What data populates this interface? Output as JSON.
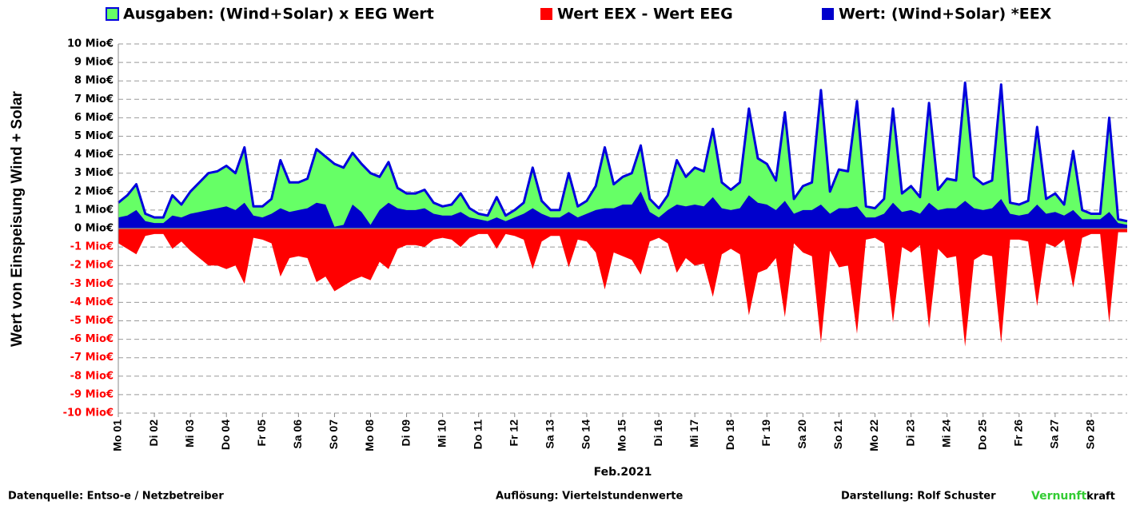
{
  "chart_data": {
    "type": "area",
    "y_label": "Wert von Einspeisung Wind + Solar",
    "x_label": "Feb.2021",
    "xlim": [
      1,
      29
    ],
    "ylim": [
      -10,
      10
    ],
    "grid": true,
    "negative_tick_color": "#ff0000",
    "yticks": [
      {
        "value": -10,
        "label": "-10 Mio€"
      },
      {
        "value": -9,
        "label": "-9 Mio€"
      },
      {
        "value": -8,
        "label": "-8 Mio€"
      },
      {
        "value": -7,
        "label": "-7 Mio€"
      },
      {
        "value": -6,
        "label": "-6 Mio€"
      },
      {
        "value": -5,
        "label": "-5 Mio€"
      },
      {
        "value": -4,
        "label": "-4 Mio€"
      },
      {
        "value": -3,
        "label": "-3 Mio€"
      },
      {
        "value": -2,
        "label": "-2 Mio€"
      },
      {
        "value": -1,
        "label": "-1 Mio€"
      },
      {
        "value": 0,
        "label": "0 Mio€"
      },
      {
        "value": 1,
        "label": "1 Mio€"
      },
      {
        "value": 2,
        "label": "2 Mio€"
      },
      {
        "value": 3,
        "label": "3 Mio€"
      },
      {
        "value": 4,
        "label": "4 Mio€"
      },
      {
        "value": 5,
        "label": "5 Mio€"
      },
      {
        "value": 6,
        "label": "6 Mio€"
      },
      {
        "value": 7,
        "label": "7 Mio€"
      },
      {
        "value": 8,
        "label": "8 Mio€"
      },
      {
        "value": 9,
        "label": "9 Mio€"
      },
      {
        "value": 10,
        "label": "10 Mio€"
      }
    ],
    "xticks": [
      {
        "value": 1,
        "label": "Mo 01"
      },
      {
        "value": 2,
        "label": "Di 02"
      },
      {
        "value": 3,
        "label": "Mi 03"
      },
      {
        "value": 4,
        "label": "Do 04"
      },
      {
        "value": 5,
        "label": "Fr 05"
      },
      {
        "value": 6,
        "label": "Sa 06"
      },
      {
        "value": 7,
        "label": "So 07"
      },
      {
        "value": 8,
        "label": "Mo 08"
      },
      {
        "value": 9,
        "label": "Di 09"
      },
      {
        "value": 10,
        "label": "Mi 10"
      },
      {
        "value": 11,
        "label": "Do 11"
      },
      {
        "value": 12,
        "label": "Fr 12"
      },
      {
        "value": 13,
        "label": "Sa 13"
      },
      {
        "value": 14,
        "label": "So 14"
      },
      {
        "value": 15,
        "label": "Mo 15"
      },
      {
        "value": 16,
        "label": "Di 16"
      },
      {
        "value": 17,
        "label": "Mi 17"
      },
      {
        "value": 18,
        "label": "Do 18"
      },
      {
        "value": 19,
        "label": "Fr 19"
      },
      {
        "value": 20,
        "label": "Sa 20"
      },
      {
        "value": 21,
        "label": "So 21"
      },
      {
        "value": 22,
        "label": "Mo 22"
      },
      {
        "value": 23,
        "label": "Di 23"
      },
      {
        "value": 24,
        "label": "Mi 24"
      },
      {
        "value": 25,
        "label": "Do 25"
      },
      {
        "value": 26,
        "label": "Fr 26"
      },
      {
        "value": 27,
        "label": "Sa 27"
      },
      {
        "value": 28,
        "label": "So 28"
      }
    ],
    "x": [
      1,
      1.25,
      1.5,
      1.75,
      2,
      2.25,
      2.5,
      2.75,
      3,
      3.25,
      3.5,
      3.75,
      4,
      4.25,
      4.5,
      4.75,
      5,
      5.25,
      5.5,
      5.75,
      6,
      6.25,
      6.5,
      6.75,
      7,
      7.25,
      7.5,
      7.75,
      8,
      8.25,
      8.5,
      8.75,
      9,
      9.25,
      9.5,
      9.75,
      10,
      10.25,
      10.5,
      10.75,
      11,
      11.25,
      11.5,
      11.75,
      12,
      12.25,
      12.5,
      12.75,
      13,
      13.25,
      13.5,
      13.75,
      14,
      14.25,
      14.5,
      14.75,
      15,
      15.25,
      15.5,
      15.75,
      16,
      16.25,
      16.5,
      16.75,
      17,
      17.25,
      17.5,
      17.75,
      18,
      18.25,
      18.5,
      18.75,
      19,
      19.25,
      19.5,
      19.75,
      20,
      20.25,
      20.5,
      20.75,
      21,
      21.25,
      21.5,
      21.75,
      22,
      22.25,
      22.5,
      22.75,
      23,
      23.25,
      23.5,
      23.75,
      24,
      24.25,
      24.5,
      24.75,
      25,
      25.25,
      25.5,
      25.75,
      26,
      26.25,
      26.5,
      26.75,
      27,
      27.25,
      27.5,
      27.75,
      28,
      28.25,
      28.5,
      28.75,
      29
    ],
    "series": [
      {
        "name": "Ausgaben: (Wind+Solar) x EEG Wert",
        "color": "#66ff66",
        "line_color": "#0000dd",
        "values": [
          1.4,
          1.8,
          2.4,
          0.8,
          0.6,
          0.6,
          1.8,
          1.3,
          2.0,
          2.5,
          3.0,
          3.1,
          3.4,
          3.0,
          4.4,
          1.2,
          1.2,
          1.6,
          3.7,
          2.5,
          2.5,
          2.7,
          4.3,
          3.9,
          3.5,
          3.3,
          4.1,
          3.5,
          3.0,
          2.8,
          3.6,
          2.2,
          1.9,
          1.9,
          2.1,
          1.4,
          1.2,
          1.3,
          1.9,
          1.1,
          0.8,
          0.7,
          1.7,
          0.7,
          1.0,
          1.4,
          3.3,
          1.5,
          1.0,
          1.0,
          3.0,
          1.2,
          1.5,
          2.3,
          4.4,
          2.4,
          2.8,
          3.0,
          4.5,
          1.6,
          1.1,
          1.8,
          3.7,
          2.8,
          3.3,
          3.1,
          5.4,
          2.5,
          2.1,
          2.5,
          6.5,
          3.8,
          3.5,
          2.6,
          6.3,
          1.6,
          2.3,
          2.5,
          7.5,
          2.0,
          3.2,
          3.1,
          6.9,
          1.2,
          1.1,
          1.6,
          6.5,
          1.9,
          2.3,
          1.7,
          6.8,
          2.1,
          2.7,
          2.6,
          7.9,
          2.8,
          2.4,
          2.6,
          7.8,
          1.4,
          1.3,
          1.5,
          5.5,
          1.6,
          1.9,
          1.3,
          4.2,
          1.0,
          0.8,
          0.8,
          6.0,
          0.5,
          0.4
        ]
      },
      {
        "name": "Wert EEX - Wert EEG",
        "color": "#ff0000",
        "values": [
          -0.8,
          -1.1,
          -1.4,
          -0.4,
          -0.3,
          -0.3,
          -1.1,
          -0.7,
          -1.2,
          -1.6,
          -2.0,
          -2.0,
          -2.2,
          -2.0,
          -3.0,
          -0.5,
          -0.6,
          -0.8,
          -2.6,
          -1.6,
          -1.5,
          -1.6,
          -2.9,
          -2.6,
          -3.4,
          -3.1,
          -2.8,
          -2.6,
          -2.8,
          -1.8,
          -2.2,
          -1.1,
          -0.9,
          -0.9,
          -1.0,
          -0.6,
          -0.5,
          -0.6,
          -1.0,
          -0.5,
          -0.3,
          -0.3,
          -1.1,
          -0.3,
          -0.4,
          -0.6,
          -2.2,
          -0.7,
          -0.4,
          -0.4,
          -2.1,
          -0.6,
          -0.7,
          -1.3,
          -3.3,
          -1.3,
          -1.5,
          -1.7,
          -2.5,
          -0.7,
          -0.5,
          -0.8,
          -2.4,
          -1.6,
          -2.0,
          -1.9,
          -3.7,
          -1.4,
          -1.1,
          -1.4,
          -4.7,
          -2.4,
          -2.2,
          -1.6,
          -4.8,
          -0.8,
          -1.3,
          -1.5,
          -6.2,
          -1.2,
          -2.1,
          -2.0,
          -5.7,
          -0.6,
          -0.5,
          -0.8,
          -5.1,
          -1.0,
          -1.3,
          -0.9,
          -5.4,
          -1.1,
          -1.6,
          -1.5,
          -6.4,
          -1.7,
          -1.4,
          -1.5,
          -6.2,
          -0.6,
          -0.6,
          -0.7,
          -4.2,
          -0.8,
          -1.0,
          -0.6,
          -3.2,
          -0.5,
          -0.3,
          -0.3,
          -5.1,
          -0.2,
          -0.2
        ]
      },
      {
        "name": "Wert: (Wind+Solar) *EEX",
        "color": "#0000cc",
        "values": [
          0.6,
          0.7,
          1.0,
          0.4,
          0.3,
          0.3,
          0.7,
          0.6,
          0.8,
          0.9,
          1.0,
          1.1,
          1.2,
          1.0,
          1.4,
          0.7,
          0.6,
          0.8,
          1.1,
          0.9,
          1.0,
          1.1,
          1.4,
          1.3,
          0.1,
          0.2,
          1.3,
          0.9,
          0.2,
          1.0,
          1.4,
          1.1,
          1.0,
          1.0,
          1.1,
          0.8,
          0.7,
          0.7,
          0.9,
          0.6,
          0.5,
          0.4,
          0.6,
          0.4,
          0.6,
          0.8,
          1.1,
          0.8,
          0.6,
          0.6,
          0.9,
          0.6,
          0.8,
          1.0,
          1.1,
          1.1,
          1.3,
          1.3,
          2.0,
          0.9,
          0.6,
          1.0,
          1.3,
          1.2,
          1.3,
          1.2,
          1.7,
          1.1,
          1.0,
          1.1,
          1.8,
          1.4,
          1.3,
          1.0,
          1.5,
          0.8,
          1.0,
          1.0,
          1.3,
          0.8,
          1.1,
          1.1,
          1.2,
          0.6,
          0.6,
          0.8,
          1.4,
          0.9,
          1.0,
          0.8,
          1.4,
          1.0,
          1.1,
          1.1,
          1.5,
          1.1,
          1.0,
          1.1,
          1.6,
          0.8,
          0.7,
          0.8,
          1.3,
          0.8,
          0.9,
          0.7,
          1.0,
          0.5,
          0.5,
          0.5,
          0.9,
          0.3,
          0.2
        ]
      }
    ]
  },
  "footer": {
    "source": "Datenquelle:  Entso-e  / Netzbetreiber",
    "resolution": "Auflösung: Viertelstundenwerte",
    "author": "Darstellung:  Rolf Schuster",
    "brand_green": "Vernunft",
    "brand_black": "kraft"
  }
}
